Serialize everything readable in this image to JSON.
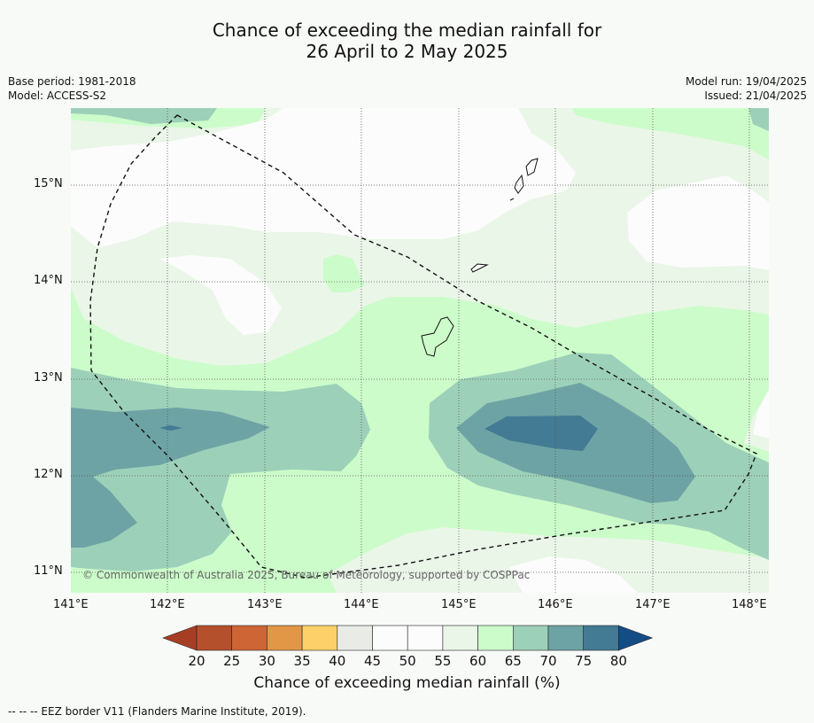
{
  "title_line1": "Chance of exceeding the median rainfall for",
  "title_line2": "26 April to 2 May 2025",
  "base_period": "Base period: 1981-2018",
  "model": "Model: ACCESS-S2",
  "model_run": "Model run: 19/04/2025",
  "issued": "Issued: 21/04/2025",
  "copyright": "© Commonwealth of Australia 2025, Bureau of Meteorology, supported by COSPPac",
  "colorbar_title": "Chance of exceeding median rainfall (%)",
  "colorbar_ticks": [
    "20",
    "25",
    "30",
    "35",
    "40",
    "45",
    "50",
    "55",
    "60",
    "65",
    "70",
    "75",
    "80"
  ],
  "colorbar_colors": [
    "#a63e24",
    "#b5502c",
    "#cd6634",
    "#e29747",
    "#fdd06a",
    "#e8ebe6",
    "#fbfcfb",
    "#fbfcfb",
    "#eaf6e8",
    "#ccfcca",
    "#9dd0b9",
    "#6ea3a5",
    "#437a94",
    "#144c86"
  ],
  "lon_ticks": [
    "141°E",
    "142°E",
    "143°E",
    "144°E",
    "145°E",
    "146°E",
    "147°E",
    "148°E"
  ],
  "lat_ticks": [
    "15°N",
    "14°N",
    "13°N",
    "12°N",
    "11°N"
  ],
  "footnote": "--  --  -- EEZ border V11 (Flanders Marine Institute, 2019).",
  "palette": {
    "c50": "#fbfcfb",
    "c55": "#eaf6e8",
    "c60": "#ccfcca",
    "c65": "#9dd0b9",
    "c70": "#6ea3a5",
    "c75": "#437a94"
  }
}
